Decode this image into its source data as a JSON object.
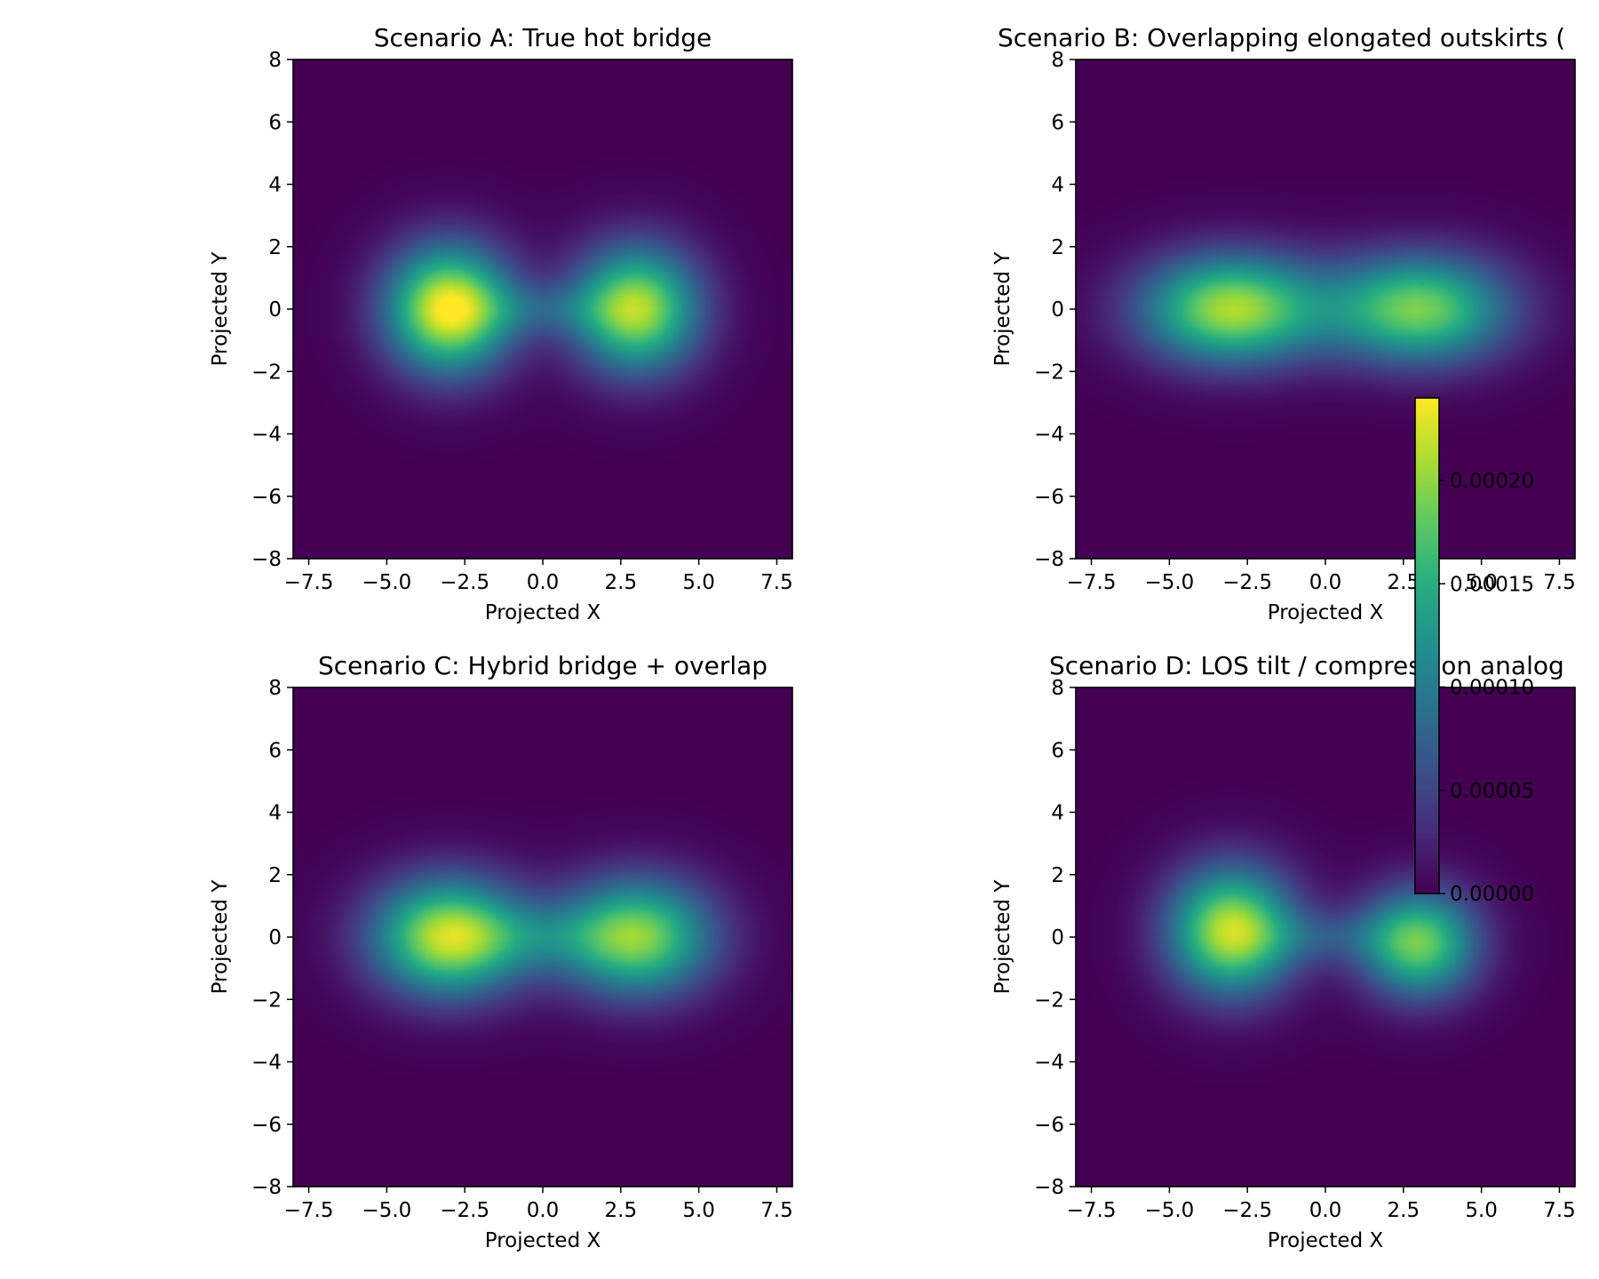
{
  "chart_data": {
    "type": "heatmap",
    "colormap": "viridis",
    "colorbar": {
      "vmin": 0.0,
      "vmax": 0.00024,
      "ticks": [
        0.0,
        5e-05,
        0.0001,
        0.00015,
        0.0002
      ],
      "tick_labels": [
        "0.00000",
        "0.00005",
        "0.00010",
        "0.00015",
        "0.00020"
      ]
    },
    "panels": [
      {
        "title": "Scenario A: True hot bridge",
        "xlabel": "Projected X",
        "ylabel": "Projected Y",
        "xlim": [
          -8,
          8
        ],
        "ylim": [
          -8,
          8
        ],
        "xticks": [
          -7.5,
          -5.0,
          -2.5,
          0.0,
          2.5,
          5.0,
          7.5
        ],
        "xtick_labels": [
          "−7.5",
          "−5.0",
          "−2.5",
          "0.0",
          "2.5",
          "5.0",
          "7.5"
        ],
        "yticks": [
          -8,
          -6,
          -4,
          -2,
          0,
          2,
          4,
          6,
          8
        ],
        "ytick_labels": [
          "−8",
          "−6",
          "−4",
          "−2",
          "0",
          "2",
          "4",
          "6",
          "8"
        ],
        "components": [
          {
            "x": -3.0,
            "y": 0.0,
            "sx": 1.4,
            "sy": 1.4,
            "amp": 0.00024
          },
          {
            "x": 3.0,
            "y": 0.0,
            "sx": 1.4,
            "sy": 1.4,
            "amp": 0.00021
          },
          {
            "x": 0.0,
            "y": 0.0,
            "sx": 1.8,
            "sy": 0.6,
            "amp": 4e-05
          }
        ]
      },
      {
        "title": "Scenario B: Overlapping elongated outskirts (",
        "xlabel": "Projected X",
        "ylabel": "Projected Y",
        "xlim": [
          -8,
          8
        ],
        "ylim": [
          -8,
          8
        ],
        "xticks": [
          -7.5,
          -5.0,
          -2.5,
          0.0,
          2.5,
          5.0,
          7.5
        ],
        "xtick_labels": [
          "−7.5",
          "−5.0",
          "−2.5",
          "0.0",
          "2.5",
          "5.0",
          "7.5"
        ],
        "yticks": [
          -8,
          -6,
          -4,
          -2,
          0,
          2,
          4,
          6,
          8
        ],
        "ytick_labels": [
          "−8",
          "−6",
          "−4",
          "−2",
          "0",
          "2",
          "4",
          "6",
          "8"
        ],
        "components": [
          {
            "x": -3.0,
            "y": 0.0,
            "sx": 2.0,
            "sy": 1.2,
            "amp": 0.00021
          },
          {
            "x": 3.0,
            "y": 0.0,
            "sx": 2.0,
            "sy": 1.2,
            "amp": 0.00019
          }
        ]
      },
      {
        "title": "Scenario C: Hybrid bridge + overlap",
        "xlabel": "Projected X",
        "ylabel": "Projected Y",
        "xlim": [
          -8,
          8
        ],
        "ylim": [
          -8,
          8
        ],
        "xticks": [
          -7.5,
          -5.0,
          -2.5,
          0.0,
          2.5,
          5.0,
          7.5
        ],
        "xtick_labels": [
          "−7.5",
          "−5.0",
          "−2.5",
          "0.0",
          "2.5",
          "5.0",
          "7.5"
        ],
        "yticks": [
          -8,
          -6,
          -4,
          -2,
          0,
          2,
          4,
          6,
          8
        ],
        "ytick_labels": [
          "−8",
          "−6",
          "−4",
          "−2",
          "0",
          "2",
          "4",
          "6",
          "8"
        ],
        "components": [
          {
            "x": -3.0,
            "y": 0.0,
            "sx": 1.7,
            "sy": 1.3,
            "amp": 0.00022
          },
          {
            "x": 3.0,
            "y": 0.0,
            "sx": 1.7,
            "sy": 1.3,
            "amp": 0.000195
          },
          {
            "x": 0.0,
            "y": 0.0,
            "sx": 1.8,
            "sy": 0.7,
            "amp": 4e-05
          }
        ]
      },
      {
        "title": "Scenario D: LOS tilt / compression analog",
        "xlabel": "Projected X",
        "ylabel": "Projected Y",
        "xlim": [
          -8,
          8
        ],
        "ylim": [
          -8,
          8
        ],
        "xticks": [
          -7.5,
          -5.0,
          -2.5,
          0.0,
          2.5,
          5.0,
          7.5
        ],
        "xtick_labels": [
          "−7.5",
          "−5.0",
          "−2.5",
          "0.0",
          "2.5",
          "5.0",
          "7.5"
        ],
        "yticks": [
          -8,
          -6,
          -4,
          -2,
          0,
          2,
          4,
          6,
          8
        ],
        "ytick_labels": [
          "−8",
          "−6",
          "−4",
          "−2",
          "0",
          "2",
          "4",
          "6",
          "8"
        ],
        "components": [
          {
            "x": -3.0,
            "y": 0.2,
            "sx": 1.4,
            "sy": 1.4,
            "amp": 0.00022
          },
          {
            "x": 3.0,
            "y": -0.2,
            "sx": 1.3,
            "sy": 1.2,
            "amp": 0.000185
          },
          {
            "x": 0.0,
            "y": 0.0,
            "sx": 1.6,
            "sy": 0.6,
            "amp": 4e-05
          }
        ]
      }
    ]
  }
}
